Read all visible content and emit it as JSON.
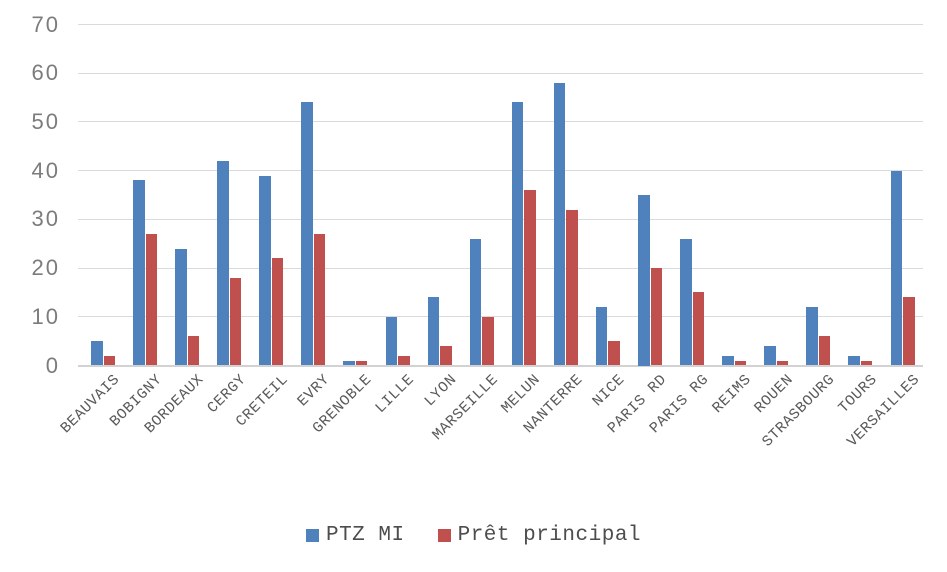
{
  "chart_data": {
    "type": "bar",
    "title": "",
    "xlabel": "",
    "ylabel": "",
    "categories": [
      "BEAUVAIS",
      "BOBIGNY",
      "BORDEAUX",
      "CERGY",
      "CRETEIL",
      "EVRY",
      "GRENOBLE",
      "LILLE",
      "LYON",
      "MARSEILLE",
      "MELUN",
      "NANTERRE",
      "NICE",
      "PARIS RD",
      "PARIS RG",
      "REIMS",
      "ROUEN",
      "STRASBOURG",
      "TOURS",
      "VERSAILLES"
    ],
    "series": [
      {
        "name": "PTZ MI",
        "color": "#4F81BD",
        "values": [
          5,
          38,
          24,
          42,
          39,
          54,
          1,
          10,
          14,
          26,
          54,
          58,
          12,
          35,
          26,
          2,
          4,
          12,
          2,
          40
        ]
      },
      {
        "name": "Prêt principal",
        "color": "#C0504D",
        "values": [
          2,
          27,
          6,
          18,
          22,
          27,
          1,
          2,
          4,
          10,
          36,
          32,
          5,
          20,
          15,
          1,
          1,
          6,
          1,
          14
        ]
      }
    ],
    "ylim": [
      0,
      70
    ],
    "yticks": [
      0,
      10,
      20,
      30,
      40,
      50,
      60,
      70
    ],
    "grid": true,
    "legend_position": "bottom",
    "colors": {
      "gridline": "#DADADA",
      "axis_line": "#D2D2D2",
      "ytick_text": "#7C7C7C",
      "xtick_text": "#595959",
      "legend_text": "#4D4D4D",
      "background": "#FFFFFF"
    }
  }
}
